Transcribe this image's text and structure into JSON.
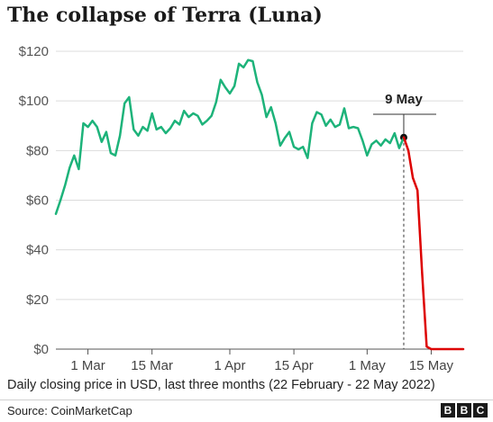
{
  "title": "The collapse of Terra (Luna)",
  "subtitle": "Daily closing price in USD, last three months (22 February - 22 May 2022)",
  "source": "Source: CoinMarketCap",
  "logo": [
    "B",
    "B",
    "C"
  ],
  "colors": {
    "pre": "#1db37a",
    "post": "#dd0000",
    "text": "#222222"
  },
  "chart_data": {
    "type": "line",
    "title": "The collapse of Terra (Luna)",
    "xlabel": "",
    "ylabel": "",
    "x_start": "2022-02-22",
    "x_end": "2022-05-22",
    "ylim": [
      0,
      120
    ],
    "yticks": [
      0,
      20,
      40,
      60,
      80,
      100,
      120
    ],
    "ytick_labels": [
      "$0",
      "$20",
      "$40",
      "$60",
      "$80",
      "$100",
      "$120"
    ],
    "xticks": [
      "2022-03-01",
      "2022-03-15",
      "2022-04-01",
      "2022-04-15",
      "2022-05-01",
      "2022-05-15"
    ],
    "xtick_labels": [
      "1 Mar",
      "15 Mar",
      "1 Apr",
      "15 Apr",
      "1 May",
      "15 May"
    ],
    "grid": true,
    "annotation": {
      "label": "9 May",
      "date": "2022-05-09",
      "value": 85.3
    },
    "series": [
      {
        "segment": "before 9 May",
        "color": "#1db37a",
        "dates": [
          "2022-02-22",
          "2022-02-23",
          "2022-02-24",
          "2022-02-25",
          "2022-02-26",
          "2022-02-27",
          "2022-02-28",
          "2022-03-01",
          "2022-03-02",
          "2022-03-03",
          "2022-03-04",
          "2022-03-05",
          "2022-03-06",
          "2022-03-07",
          "2022-03-08",
          "2022-03-09",
          "2022-03-10",
          "2022-03-11",
          "2022-03-12",
          "2022-03-13",
          "2022-03-14",
          "2022-03-15",
          "2022-03-16",
          "2022-03-17",
          "2022-03-18",
          "2022-03-19",
          "2022-03-20",
          "2022-03-21",
          "2022-03-22",
          "2022-03-23",
          "2022-03-24",
          "2022-03-25",
          "2022-03-26",
          "2022-03-27",
          "2022-03-28",
          "2022-03-29",
          "2022-03-30",
          "2022-03-31",
          "2022-04-01",
          "2022-04-02",
          "2022-04-03",
          "2022-04-04",
          "2022-04-05",
          "2022-04-06",
          "2022-04-07",
          "2022-04-08",
          "2022-04-09",
          "2022-04-10",
          "2022-04-11",
          "2022-04-12",
          "2022-04-13",
          "2022-04-14",
          "2022-04-15",
          "2022-04-16",
          "2022-04-17",
          "2022-04-18",
          "2022-04-19",
          "2022-04-20",
          "2022-04-21",
          "2022-04-22",
          "2022-04-23",
          "2022-04-24",
          "2022-04-25",
          "2022-04-26",
          "2022-04-27",
          "2022-04-28",
          "2022-04-29",
          "2022-04-30",
          "2022-05-01",
          "2022-05-02",
          "2022-05-03",
          "2022-05-04",
          "2022-05-05",
          "2022-05-06",
          "2022-05-07",
          "2022-05-08",
          "2022-05-09"
        ],
        "values": [
          54.5,
          60,
          66,
          73,
          78,
          72.5,
          91,
          89.5,
          92,
          89.5,
          83.5,
          87.5,
          79,
          78,
          86,
          99,
          101.5,
          88.5,
          86,
          89.5,
          88,
          95,
          88.5,
          89.5,
          87,
          89,
          92,
          90.5,
          96,
          93.5,
          95,
          94,
          90.5,
          92,
          94,
          99.5,
          108.5,
          105.5,
          103,
          106,
          115,
          113.5,
          116.5,
          116,
          107.5,
          102.5,
          93.5,
          97.5,
          91,
          82,
          85,
          87.5,
          81.5,
          80.5,
          81.5,
          77,
          91,
          95.5,
          94.5,
          90,
          92.5,
          89.5,
          90.5,
          97,
          89,
          89.5,
          89,
          84,
          78,
          82.5,
          84,
          82,
          84.5,
          83,
          87,
          81,
          85.3
        ]
      },
      {
        "segment": "after 9 May",
        "color": "#dd0000",
        "dates": [
          "2022-05-09",
          "2022-05-10",
          "2022-05-11",
          "2022-05-12",
          "2022-05-13",
          "2022-05-14",
          "2022-05-15",
          "2022-05-16",
          "2022-05-17",
          "2022-05-18",
          "2022-05-19",
          "2022-05-20",
          "2022-05-21",
          "2022-05-22"
        ],
        "values": [
          85.3,
          80,
          69,
          64,
          31,
          1,
          0.01,
          0.01,
          0.01,
          0.01,
          0.01,
          0.01,
          0.01,
          0.01
        ]
      }
    ]
  }
}
